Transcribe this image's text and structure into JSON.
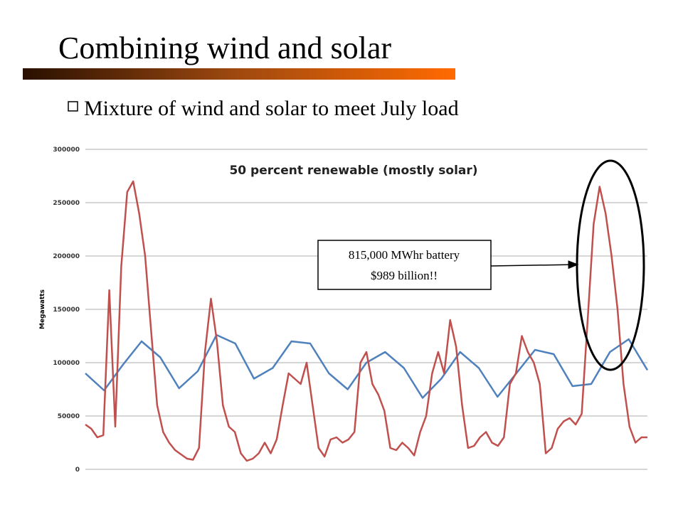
{
  "slide": {
    "title": "Combining wind and solar",
    "bullet": "Mixture of wind and solar to meet July load"
  },
  "chart_data": {
    "type": "line",
    "title": "50 percent renewable (mostly solar)",
    "y_label": "Megawatts",
    "ylim": [
      0,
      300000
    ],
    "yticks": [
      0,
      50000,
      100000,
      150000,
      200000,
      250000,
      300000
    ],
    "grid": true,
    "annotations": [
      "815,000 MWhr battery",
      "$989 billion!!"
    ],
    "series": [
      {
        "color": "#4f81bd",
        "values": [
          90000,
          74000,
          98000,
          120000,
          105000,
          76000,
          92000,
          126000,
          118000,
          85000,
          95000,
          120000,
          118000,
          90000,
          75000,
          100000,
          110000,
          95000,
          67000,
          85000,
          110000,
          95000,
          68000,
          90000,
          112000,
          108000,
          78000,
          80000,
          110000,
          122000,
          93000
        ]
      },
      {
        "color": "#c0504d",
        "values": [
          42000,
          38000,
          30000,
          32000,
          168000,
          40000,
          190000,
          260000,
          270000,
          240000,
          200000,
          130000,
          60000,
          35000,
          25000,
          18000,
          14000,
          10000,
          9000,
          20000,
          110000,
          160000,
          120000,
          60000,
          40000,
          35000,
          15000,
          8000,
          10000,
          15000,
          25000,
          15000,
          28000,
          60000,
          90000,
          85000,
          80000,
          100000,
          60000,
          20000,
          12000,
          28000,
          30000,
          25000,
          28000,
          35000,
          100000,
          110000,
          80000,
          70000,
          55000,
          20000,
          18000,
          25000,
          20000,
          13000,
          35000,
          50000,
          90000,
          110000,
          90000,
          140000,
          115000,
          60000,
          20000,
          22000,
          30000,
          35000,
          25000,
          22000,
          30000,
          80000,
          90000,
          125000,
          110000,
          100000,
          80000,
          15000,
          20000,
          38000,
          45000,
          48000,
          42000,
          52000,
          140000,
          230000,
          265000,
          240000,
          200000,
          150000,
          80000,
          40000,
          25000,
          30000,
          30000
        ]
      }
    ]
  }
}
